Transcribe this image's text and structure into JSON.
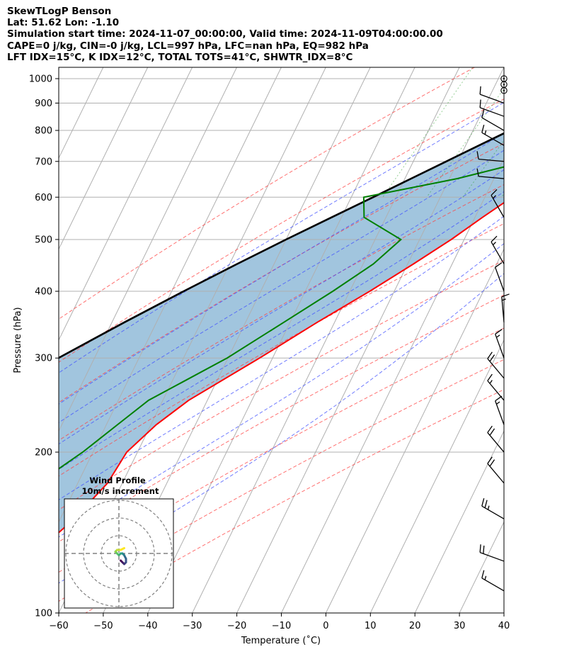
{
  "header": {
    "line1": "SkewTLogP Benson",
    "line2": "Lat: 51.62   Lon: -1.10",
    "line3": "Simulation start time: 2024-11-07_00:00:00, Valid time: 2024-11-09T04:00:00.00",
    "line4": "CAPE=0 j/kg, CIN=-0 j/kg, LCL=997 hPa, LFC=nan hPa, EQ=982 hPa",
    "line5": "LFT IDX=15°C, K IDX=12°C, TOTAL TOTS=41°C, SHWTR_IDX=8°C"
  },
  "chart_data": {
    "type": "skew-t log-p",
    "xlabel": "Temperature (˚C)",
    "ylabel": "Pressure (hPa)",
    "xlim": [
      -60,
      40
    ],
    "ylim": [
      1050,
      100
    ],
    "x_ticks": [
      "−60",
      "−50",
      "−40",
      "−30",
      "−20",
      "−10",
      "0",
      "10",
      "20",
      "30",
      "40"
    ],
    "y_ticks": [
      1000,
      900,
      800,
      700,
      600,
      500,
      400,
      300,
      200,
      100
    ],
    "grid": true,
    "temperature": {
      "color": "#ff0000",
      "p": [
        1000,
        975,
        950,
        925,
        900,
        850,
        800,
        750,
        700,
        650,
        600,
        550,
        500,
        450,
        400,
        350,
        300,
        250,
        225,
        200,
        175,
        150,
        125,
        100
      ],
      "t": [
        7,
        8.2,
        10.7,
        11.7,
        11.1,
        9.1,
        6.8,
        4.3,
        1.8,
        -0.8,
        -3.9,
        -8.3,
        -12.9,
        -18.7,
        -25.5,
        -33.9,
        -42.9,
        -54.2,
        -58.8,
        -62.4,
        -63.3,
        -66.9,
        -72.9,
        -80.3
      ]
    },
    "dewpoint": {
      "color": "#008000",
      "p": [
        1000,
        975,
        950,
        925,
        900,
        850,
        800,
        750,
        700,
        650,
        600,
        550,
        500,
        450,
        400,
        350,
        300,
        250,
        225,
        200,
        175,
        150,
        125,
        100
      ],
      "td": [
        5.2,
        -1.7,
        -4.7,
        -1.6,
        2.7,
        -1.3,
        -5.0,
        -5.2,
        -4.7,
        -18.2,
        -37.2,
        -34.9,
        -24.2,
        -27.7,
        -33.8,
        -41.4,
        -50.2,
        -63.2,
        -67.5,
        -72.3,
        -78.9,
        -85.0,
        -94.0,
        -101.6
      ]
    },
    "parcel": {
      "color": "#000000",
      "p": [
        1000,
        950,
        900,
        850,
        800,
        750,
        700,
        650,
        600,
        550,
        500,
        450,
        400,
        350,
        300,
        250,
        200,
        150,
        100
      ],
      "t": [
        7,
        2.6,
        -1.9,
        -6.7,
        -11.7,
        -17.0,
        -22.6,
        -28.6,
        -35.1,
        -42.2,
        -50.0,
        -58.3,
        -67.3,
        -77.2,
        -88.1,
        -100.4,
        -114.5,
        -131.3,
        -153.5
      ]
    },
    "cin_fill": {
      "color": "#a1c5de",
      "between": [
        "parcel",
        "temperature"
      ]
    },
    "dry_adiabats_theta_c": [
      -30,
      -10,
      10,
      30,
      50,
      70,
      90,
      110,
      130,
      150
    ],
    "moist_adiabats_t0_c": [
      -10,
      0,
      5,
      10,
      15,
      20,
      25,
      30
    ],
    "mixing_ratios": [
      0.0004,
      0.001,
      0.002,
      0.004,
      0.007,
      0.01,
      0.016,
      0.024
    ],
    "wind_barbs": {
      "p": [
        1000,
        975,
        950,
        900,
        850,
        800,
        750,
        700,
        650,
        550,
        450,
        400,
        350,
        300,
        275,
        250,
        225,
        200,
        175,
        150,
        125,
        110
      ],
      "speed_kt": [
        0,
        0,
        0,
        12,
        12,
        12,
        15,
        12,
        12,
        15,
        15,
        10,
        15,
        15,
        20,
        15,
        15,
        20,
        20,
        25,
        20,
        15
      ],
      "dir_deg": [
        0,
        0,
        0,
        290,
        290,
        300,
        300,
        275,
        275,
        330,
        330,
        340,
        355,
        340,
        320,
        320,
        340,
        320,
        320,
        300,
        290,
        300
      ]
    },
    "hodograph": {
      "title": "Wind Profile",
      "subtitle": "10m/s increment",
      "rings_ms": [
        10,
        20,
        30
      ],
      "u": [
        1,
        2,
        3,
        4,
        4,
        3,
        2,
        1,
        0,
        -1,
        -2,
        -1,
        1,
        3
      ],
      "v": [
        -4,
        -5,
        -6,
        -5,
        -3,
        -1,
        0,
        0,
        -1,
        0,
        1,
        2,
        2,
        3
      ]
    }
  }
}
